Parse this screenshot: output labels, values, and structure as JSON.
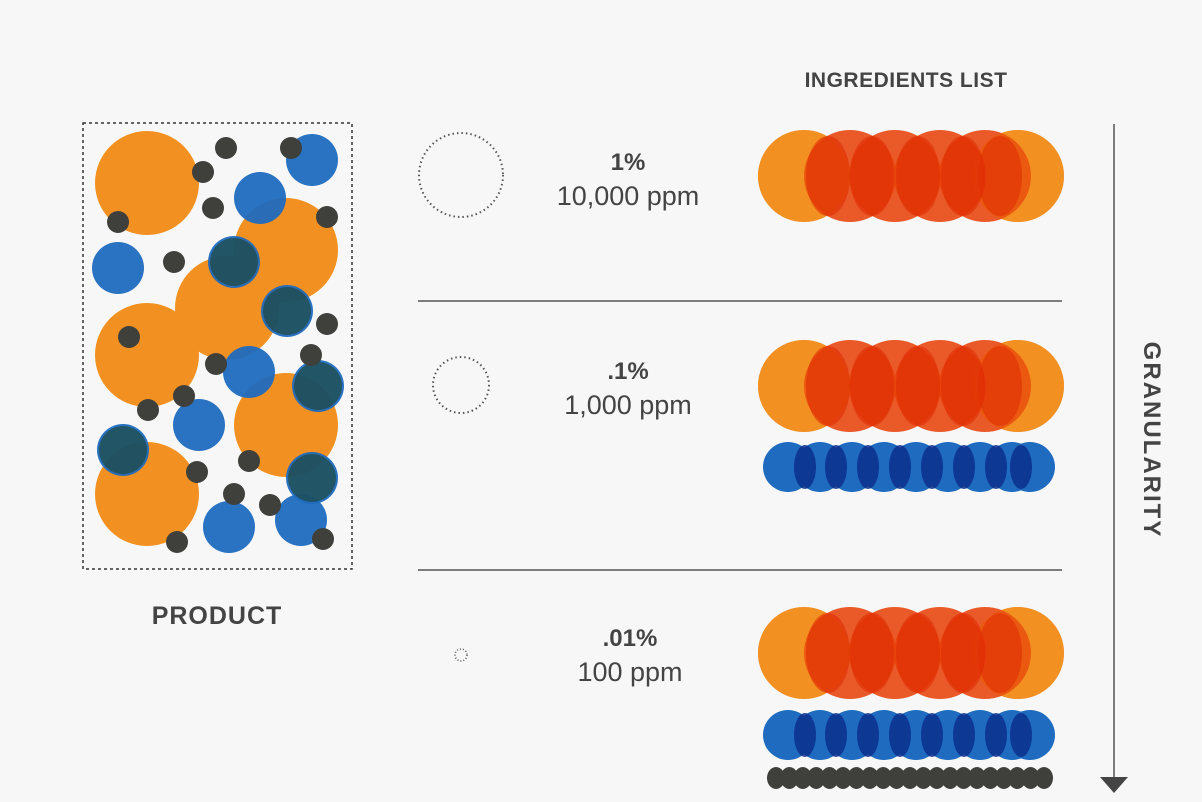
{
  "colors": {
    "orange": "#f29121",
    "orange_overlap": "#e8420a",
    "orange_core": "#e02d05",
    "blue": "#1f6bbf",
    "blue_overlap": "#0a2f8c",
    "dark": "#3f3f3c",
    "green_overlap": "#1b3d1c",
    "text": "#444444",
    "line": "#555555"
  },
  "product": {
    "label": "PRODUCT",
    "particles": [
      "orange-particle",
      "blue-particle",
      "dark-particle"
    ]
  },
  "ingredients_list": {
    "title": "INGREDIENTS LIST"
  },
  "axis": {
    "label": "GRANULARITY",
    "arrow_icon": "down-arrow-icon"
  },
  "levels": [
    {
      "percent": "1%",
      "ppm": "10,000 ppm",
      "stacks": [
        "orange"
      ]
    },
    {
      "percent": ".1%",
      "ppm": "1,000 ppm",
      "stacks": [
        "orange",
        "blue"
      ]
    },
    {
      "percent": ".01%",
      "ppm": "100 ppm",
      "stacks": [
        "orange",
        "blue",
        "dark"
      ]
    }
  ]
}
